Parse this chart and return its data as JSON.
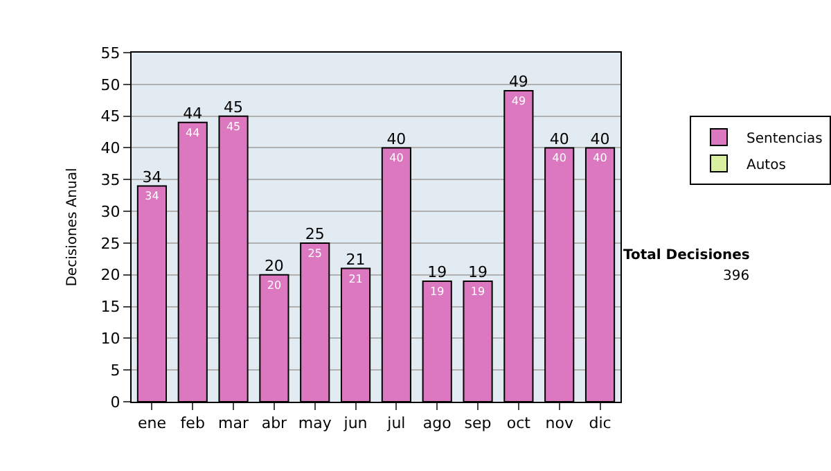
{
  "chart_data": {
    "type": "bar",
    "categories": [
      "ene",
      "feb",
      "mar",
      "abr",
      "may",
      "jun",
      "jul",
      "ago",
      "sep",
      "oct",
      "nov",
      "dic"
    ],
    "series": [
      {
        "name": "Sentencias",
        "color": "#dc78c0",
        "values": [
          34,
          44,
          45,
          20,
          25,
          21,
          40,
          19,
          19,
          49,
          40,
          40
        ]
      },
      {
        "name": "Autos",
        "color": "#d8f0a0",
        "values": [
          null,
          null,
          null,
          null,
          null,
          null,
          null,
          null,
          null,
          null,
          null,
          null
        ]
      }
    ],
    "ylabel": "Decisiones Anual",
    "ylim": [
      0,
      55
    ],
    "yticks": [
      0,
      5,
      10,
      15,
      20,
      25,
      30,
      35,
      40,
      45,
      50,
      55
    ],
    "grid": "y",
    "legend": "right",
    "data_labels": true,
    "totals": [
      "34",
      "44",
      "45",
      "20",
      "25",
      "21",
      "40",
      "19",
      "19",
      "49",
      "40",
      "40"
    ],
    "annotations": [
      "Total Decisiones",
      "396"
    ]
  }
}
